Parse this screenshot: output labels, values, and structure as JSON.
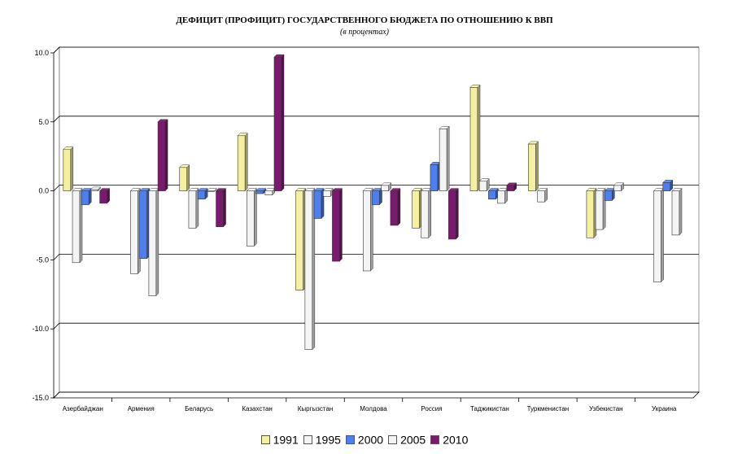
{
  "chart_data": {
    "type": "bar",
    "title": "ДЕФИЦИТ (ПРОФИЦИТ) ГОСУДАРСТВЕННОГО БЮДЖЕТА ПО ОТНОШЕНИЮ К ВВП",
    "subtitle": "(в процентах)",
    "xlabel": "",
    "ylabel": "",
    "ylim": [
      -15,
      10
    ],
    "yticks": [
      "10.0",
      "5.0",
      "0.0",
      "-5.0",
      "-10.0",
      "-15.0"
    ],
    "grid": "horizontal",
    "legend_position": "bottom",
    "categories": [
      "Азербайджан",
      "Армения",
      "Беларусь",
      "Казахстан",
      "Кыргызстан",
      "Молдова",
      "Россия",
      "Таджикистан",
      "Туркменистан",
      "Узбекистан",
      "Украина"
    ],
    "series": [
      {
        "name": "1991",
        "color": "#f4f0a0",
        "values": [
          3.0,
          null,
          1.7,
          4.0,
          -7.2,
          null,
          -2.7,
          7.5,
          3.4,
          -3.4,
          null
        ]
      },
      {
        "name": "1995",
        "color": "#f4f4f4",
        "values": [
          -5.2,
          -6.0,
          -2.7,
          -4.0,
          -11.5,
          -5.8,
          -3.4,
          0.7,
          -0.8,
          -2.8,
          -6.6
        ]
      },
      {
        "name": "2000",
        "color": "#4d7ff0",
        "values": [
          -1.0,
          -4.9,
          -0.6,
          -0.2,
          -2.0,
          -1.0,
          1.9,
          -0.6,
          null,
          -0.7,
          0.6
        ]
      },
      {
        "name": "2005",
        "color": "#f4f4f4",
        "values": [
          0.1,
          -7.6,
          0.0,
          -0.3,
          -0.4,
          0.4,
          4.5,
          -0.9,
          null,
          0.4,
          -3.2
        ]
      },
      {
        "name": "2010",
        "color": "#7a1a6e",
        "values": [
          -0.9,
          5.0,
          -2.6,
          9.7,
          -5.1,
          -2.5,
          -3.5,
          0.4,
          null,
          null,
          null
        ]
      }
    ]
  }
}
